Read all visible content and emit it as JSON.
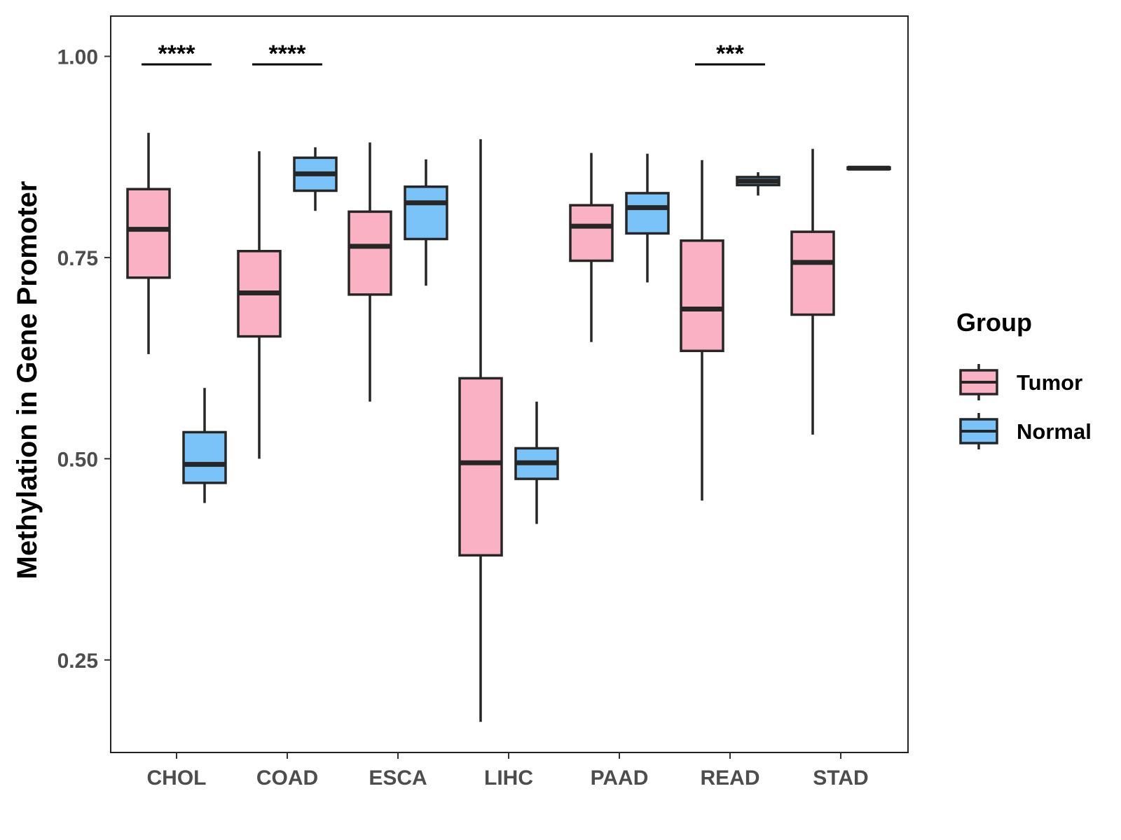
{
  "chart_data": {
    "type": "box",
    "title": "",
    "xlabel": "",
    "ylabel": "Methylation in Gene Promoter",
    "ylim": [
      0.135,
      1.05
    ],
    "yticks": [
      0.25,
      0.5,
      0.75,
      1.0
    ],
    "ytick_labels": [
      "0.25",
      "0.50",
      "0.75",
      "1.00"
    ],
    "grid": false,
    "categories": [
      "CHOL",
      "COAD",
      "ESCA",
      "LIHC",
      "PAAD",
      "READ",
      "STAD"
    ],
    "legend": {
      "title": "Group",
      "position": "right",
      "entries": [
        {
          "name": "Tumor",
          "color": "#F9B1C3"
        },
        {
          "name": "Normal",
          "color": "#79C3F8"
        }
      ]
    },
    "series": [
      {
        "name": "Tumor",
        "color": "#F9B1C3",
        "boxes": [
          {
            "category": "CHOL",
            "whisker_low": 0.63,
            "q1": 0.725,
            "median": 0.785,
            "q3": 0.835,
            "whisker_high": 0.905
          },
          {
            "category": "COAD",
            "whisker_low": 0.5,
            "q1": 0.652,
            "median": 0.706,
            "q3": 0.758,
            "whisker_high": 0.882
          },
          {
            "category": "ESCA",
            "whisker_low": 0.571,
            "q1": 0.704,
            "median": 0.764,
            "q3": 0.807,
            "whisker_high": 0.893
          },
          {
            "category": "LIHC",
            "whisker_low": 0.173,
            "q1": 0.38,
            "median": 0.495,
            "q3": 0.6,
            "whisker_high": 0.897
          },
          {
            "category": "PAAD",
            "whisker_low": 0.645,
            "q1": 0.746,
            "median": 0.789,
            "q3": 0.815,
            "whisker_high": 0.88
          },
          {
            "category": "READ",
            "whisker_low": 0.448,
            "q1": 0.634,
            "median": 0.686,
            "q3": 0.771,
            "whisker_high": 0.871
          },
          {
            "category": "STAD",
            "whisker_low": 0.53,
            "q1": 0.679,
            "median": 0.744,
            "q3": 0.782,
            "whisker_high": 0.885
          }
        ]
      },
      {
        "name": "Normal",
        "color": "#79C3F8",
        "boxes": [
          {
            "category": "CHOL",
            "whisker_low": 0.445,
            "q1": 0.47,
            "median": 0.493,
            "q3": 0.533,
            "whisker_high": 0.588
          },
          {
            "category": "COAD",
            "whisker_low": 0.808,
            "q1": 0.833,
            "median": 0.854,
            "q3": 0.874,
            "whisker_high": 0.887
          },
          {
            "category": "ESCA",
            "whisker_low": 0.715,
            "q1": 0.773,
            "median": 0.818,
            "q3": 0.838,
            "whisker_high": 0.872
          },
          {
            "category": "LIHC",
            "whisker_low": 0.419,
            "q1": 0.475,
            "median": 0.495,
            "q3": 0.513,
            "whisker_high": 0.571
          },
          {
            "category": "PAAD",
            "whisker_low": 0.719,
            "q1": 0.78,
            "median": 0.812,
            "q3": 0.83,
            "whisker_high": 0.879
          },
          {
            "category": "READ",
            "whisker_low": 0.827,
            "q1": 0.84,
            "median": 0.845,
            "q3": 0.85,
            "whisker_high": 0.856
          },
          {
            "category": "STAD",
            "whisker_low": 0.86,
            "q1": 0.86,
            "median": 0.861,
            "q3": 0.862,
            "whisker_high": 0.862
          }
        ]
      }
    ],
    "annotations": [
      {
        "category": "CHOL",
        "label": "****"
      },
      {
        "category": "COAD",
        "label": "****"
      },
      {
        "category": "READ",
        "label": "***"
      }
    ],
    "annotation_level": 0.99
  }
}
